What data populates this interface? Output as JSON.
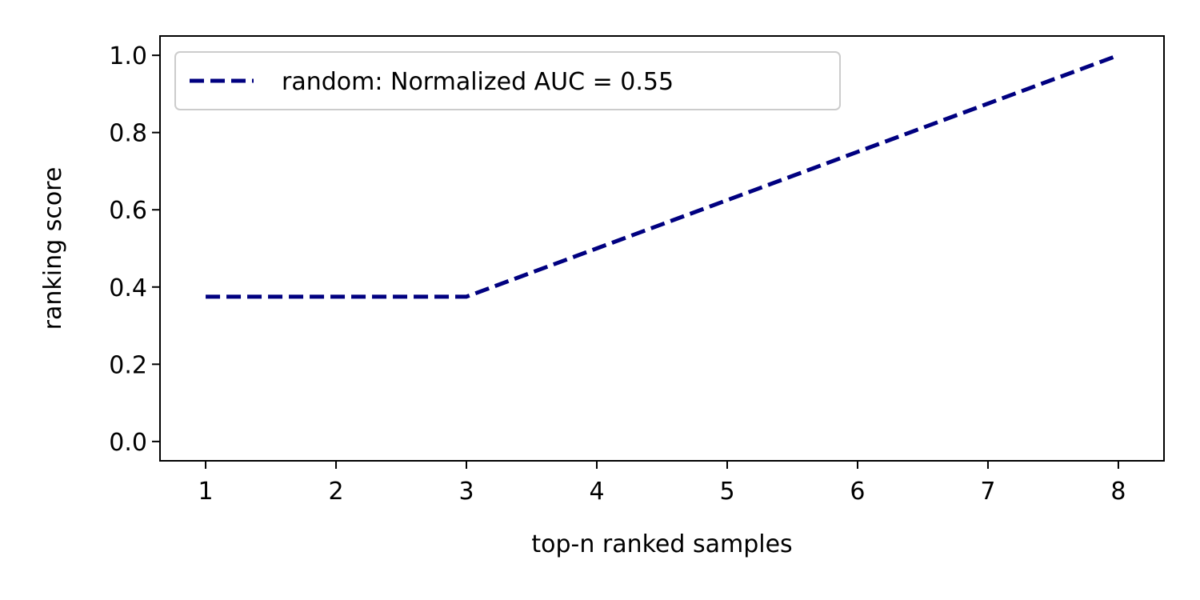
{
  "chart_data": {
    "type": "line",
    "title": "",
    "xlabel": "top-n ranked samples",
    "ylabel": "ranking score",
    "xlim": [
      0.65,
      8.35
    ],
    "ylim": [
      -0.05,
      1.05
    ],
    "x_ticks": [
      1,
      2,
      3,
      4,
      5,
      6,
      7,
      8
    ],
    "y_ticks": [
      0.0,
      0.2,
      0.4,
      0.6,
      0.8,
      1.0
    ],
    "x_tick_labels": [
      "1",
      "2",
      "3",
      "4",
      "5",
      "6",
      "7",
      "8"
    ],
    "y_tick_labels": [
      "0.0",
      "0.2",
      "0.4",
      "0.6",
      "0.8",
      "1.0"
    ],
    "grid": false,
    "legend_position": "top-left",
    "series": [
      {
        "name": "random: Normalized AUC = 0.55",
        "color": "#000080",
        "line_style": "dashed",
        "x": [
          1,
          2,
          3,
          4,
          5,
          6,
          7,
          8
        ],
        "values": [
          0.375,
          0.375,
          0.375,
          0.5,
          0.625,
          0.75,
          0.875,
          1.0
        ]
      }
    ]
  }
}
